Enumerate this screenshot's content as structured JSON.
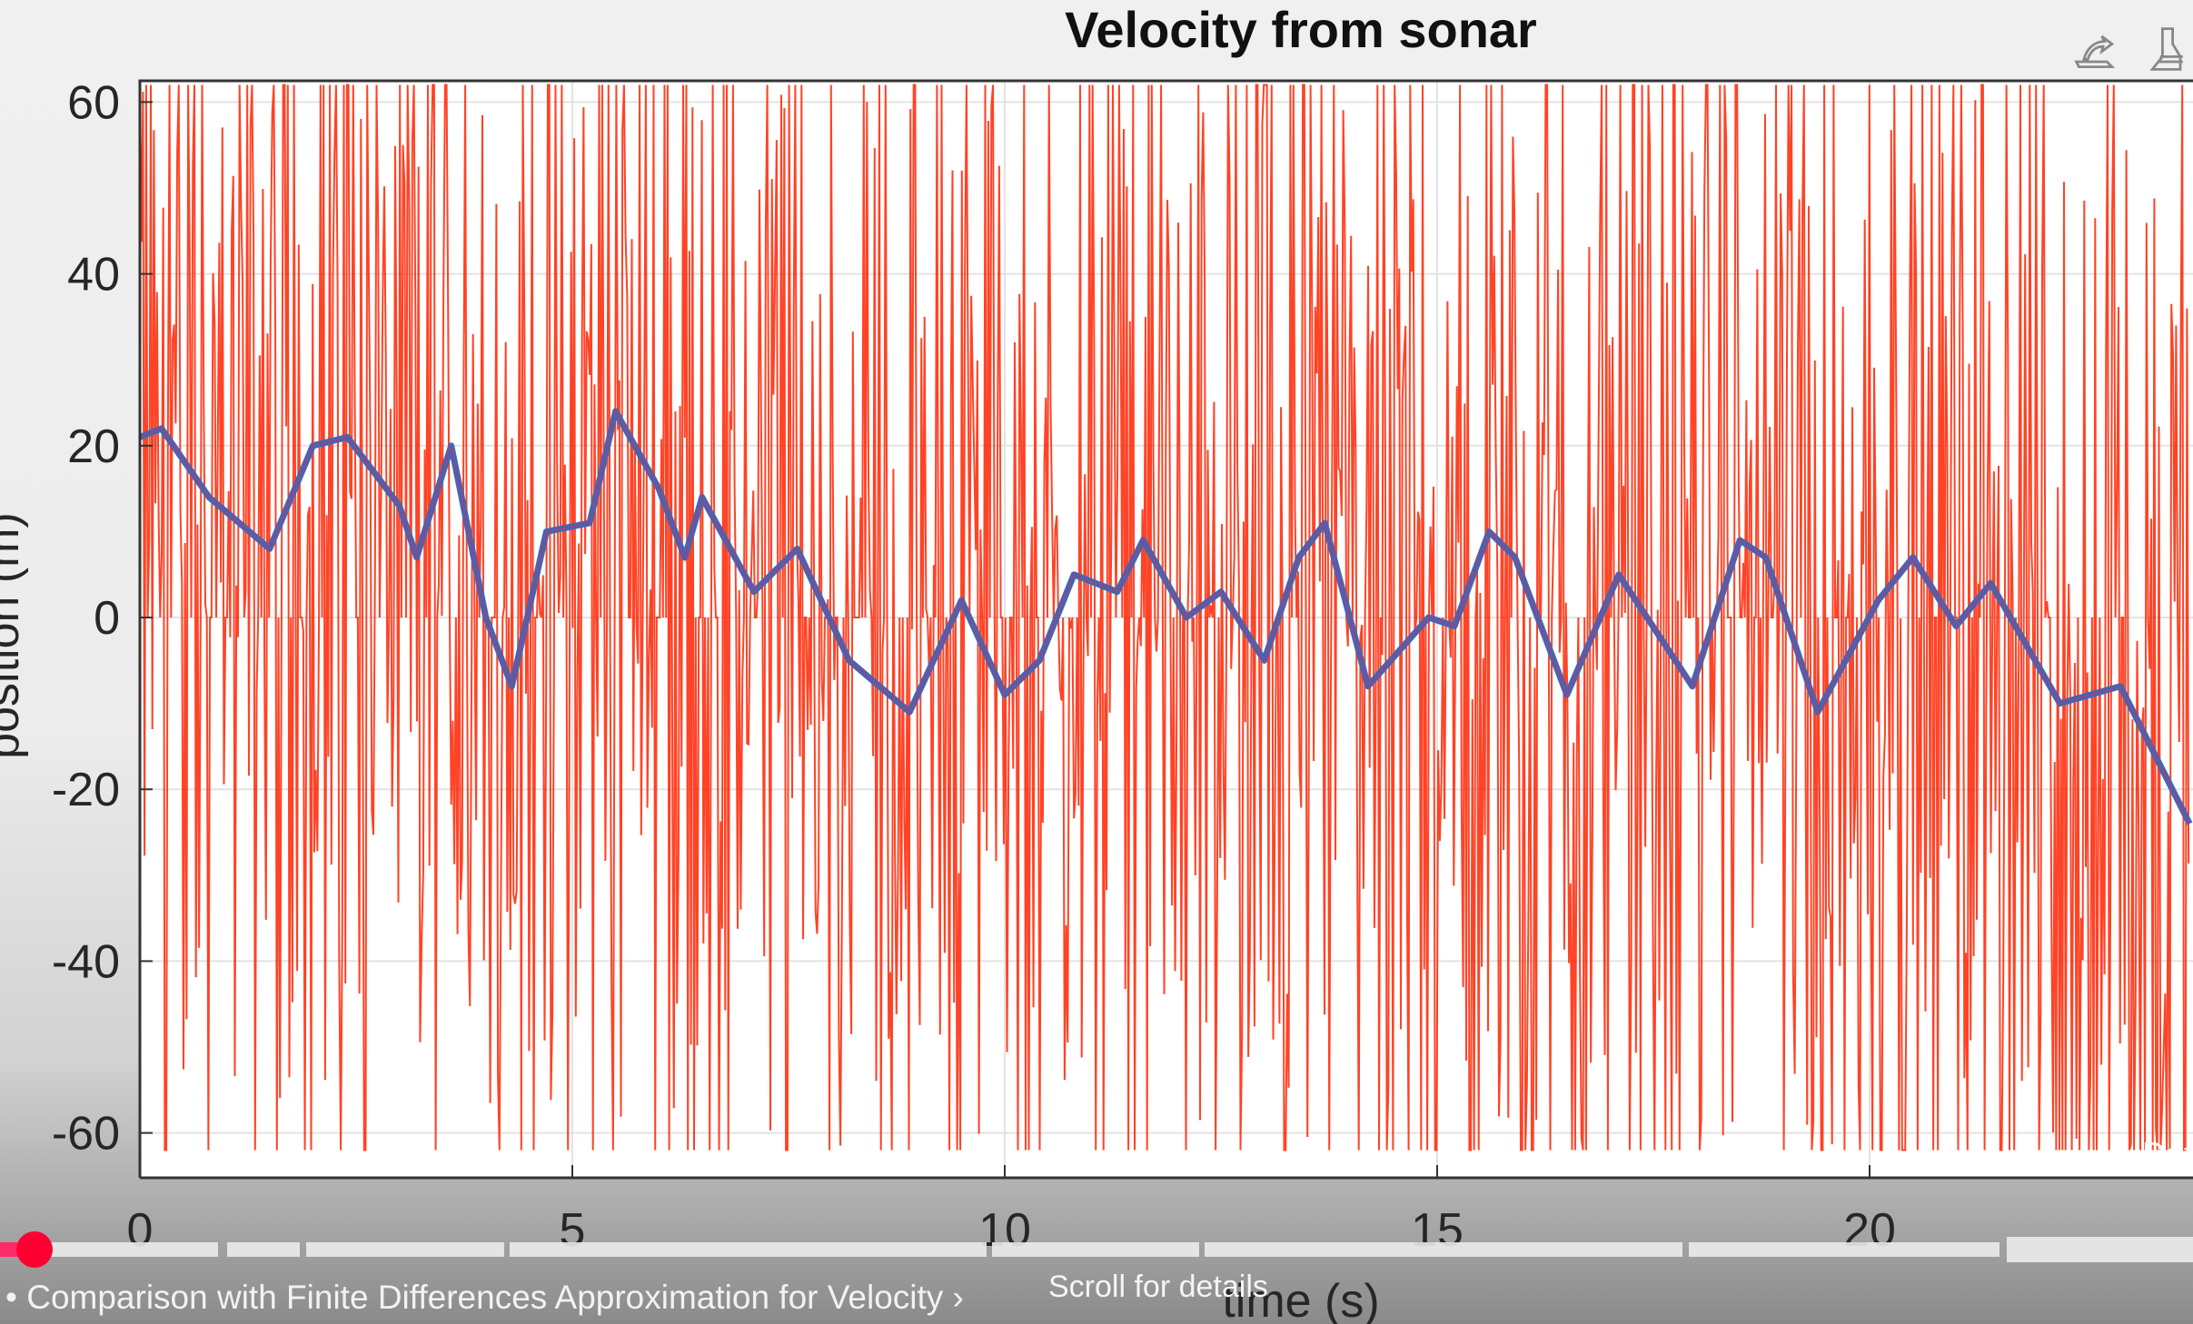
{
  "chart_data": {
    "type": "line",
    "title": "Velocity from sonar",
    "xlabel": "time (s)",
    "ylabel": "position (m)",
    "xlim": [
      0,
      23.7
    ],
    "ylim": [
      -62,
      62
    ],
    "xticks": [
      "0",
      "5",
      "10",
      "15",
      "20"
    ],
    "yticks": [
      "60",
      "40",
      "20",
      "0",
      "-20",
      "-40",
      "-60"
    ],
    "grid": true,
    "series": [
      {
        "color": "#2f6fc0",
        "x": [
          0,
          0.25,
          0.8,
          1.5,
          2.0,
          2.4,
          3.0,
          3.2,
          3.6,
          4.0,
          4.3,
          4.7,
          5.2,
          5.5,
          6.0,
          6.3,
          6.5,
          7.1,
          7.6,
          8.2,
          8.9,
          9.5,
          10.0,
          10.4,
          10.8,
          11.3,
          11.6,
          12.1,
          12.5,
          13.0,
          13.4,
          13.7,
          14.2,
          14.9,
          15.2,
          15.6,
          15.9,
          16.5,
          17.1,
          17.95,
          18.5,
          18.8,
          19.4,
          20.1,
          20.5,
          21.0,
          21.4,
          22.2,
          22.9,
          23.7
        ],
        "y": [
          21,
          22,
          14,
          8,
          20,
          21,
          13,
          7,
          20,
          0,
          -8,
          10,
          11,
          24,
          15,
          7,
          14,
          3,
          8,
          -5,
          -11,
          2,
          -9,
          -5,
          5,
          3,
          9,
          0,
          3,
          -5,
          7,
          11,
          -8,
          0,
          -1,
          10,
          7,
          -9,
          5,
          -8,
          9,
          7,
          -11,
          2,
          7,
          -1,
          4,
          -10,
          -8,
          -24
        ]
      },
      {
        "color": "#ff2200",
        "description_values": "noisy finite-difference velocity, spanning beyond ±60"
      }
    ]
  },
  "colors": {
    "red_series": "#ff2200",
    "blue_series": "#2f6fc0",
    "progress": "#ff0033"
  },
  "toolbar": {
    "icons": [
      "brush-edit-icon",
      "paint-brush-icon"
    ]
  },
  "player": {
    "chapter_title": "• Comparison with Finite Differences Approximation for Velocity ›",
    "scroll_hint": "Scroll for details",
    "overlay_text": "Dat",
    "progress_fraction": 0.01
  }
}
